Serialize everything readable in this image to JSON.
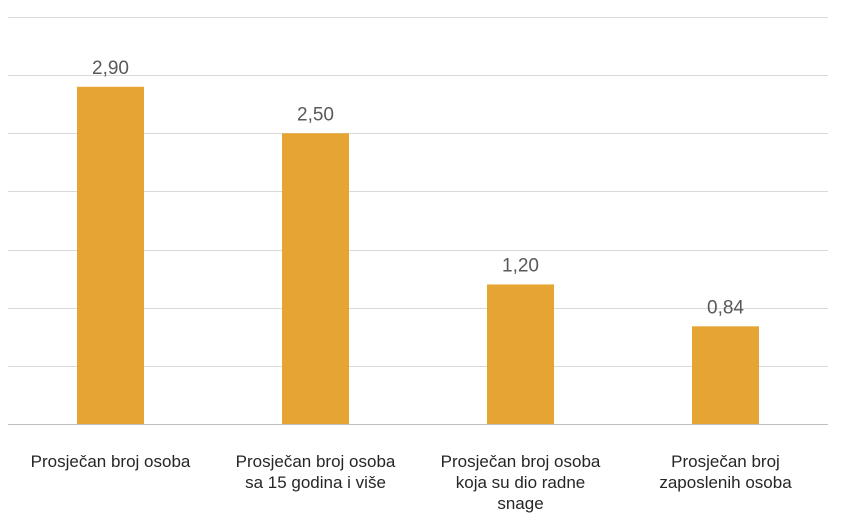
{
  "chart_data": {
    "type": "bar",
    "categories": [
      [
        "Prosječan broj osoba"
      ],
      [
        "Prosječan broj osoba",
        "sa 15 godina i više"
      ],
      [
        "Prosječan broj osoba",
        "koja su dio radne",
        "snage"
      ],
      [
        "Prosječan broj",
        "zaposlenih osoba"
      ]
    ],
    "values": [
      2.9,
      2.5,
      1.2,
      0.84
    ],
    "value_labels": [
      "2,90",
      "2,50",
      "1,20",
      "0,84"
    ],
    "ylim": [
      0,
      3.5
    ],
    "grid": true,
    "colors": {
      "bar": "#E6A532",
      "grid": "#D9D9D9",
      "axis": "#BFBFBF"
    }
  }
}
